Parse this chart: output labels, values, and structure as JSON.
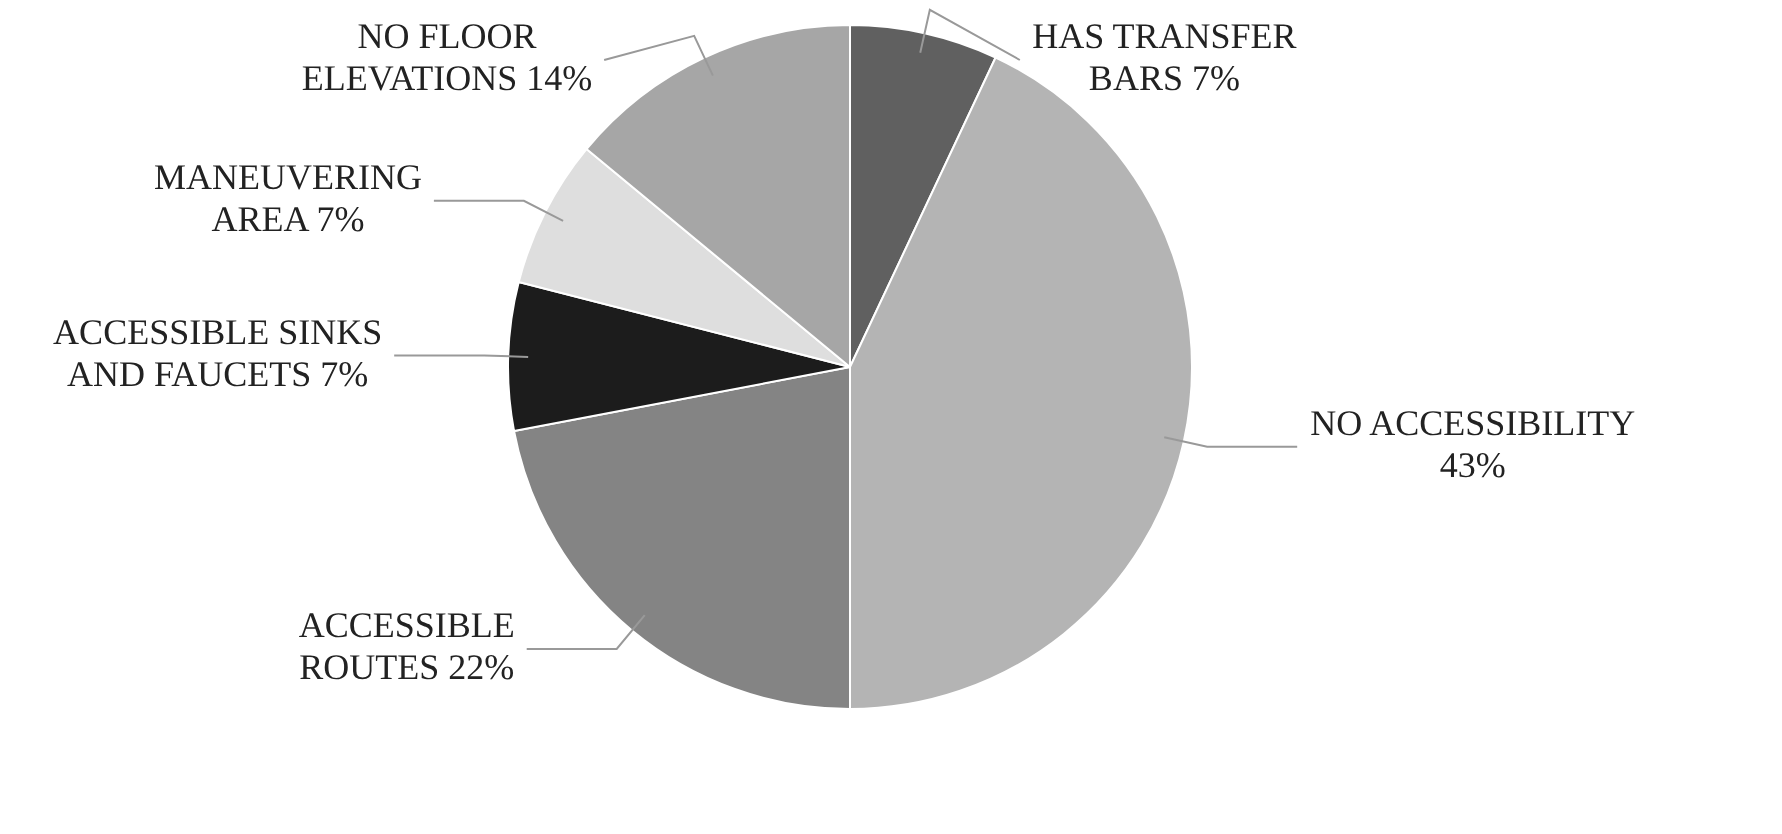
{
  "chart_data": {
    "type": "pie",
    "categories": [
      "HAS TRANSFER BARS",
      "NO ACCESSIBILITY",
      "ACCESSIBLE ROUTES",
      "ACCESSIBLE SINKS AND FAUCETS",
      "MANEUVERING AREA",
      "NO FLOOR ELEVATIONS"
    ],
    "values": [
      7,
      43,
      22,
      7,
      7,
      14
    ],
    "colors": [
      "#606060",
      "#b4b4b4",
      "#848484",
      "#1c1c1c",
      "#dedede",
      "#a6a6a6"
    ],
    "value_labels": [
      "7%",
      "43%",
      "22%",
      "7%",
      "7%",
      "14%"
    ],
    "legend": false
  }
}
